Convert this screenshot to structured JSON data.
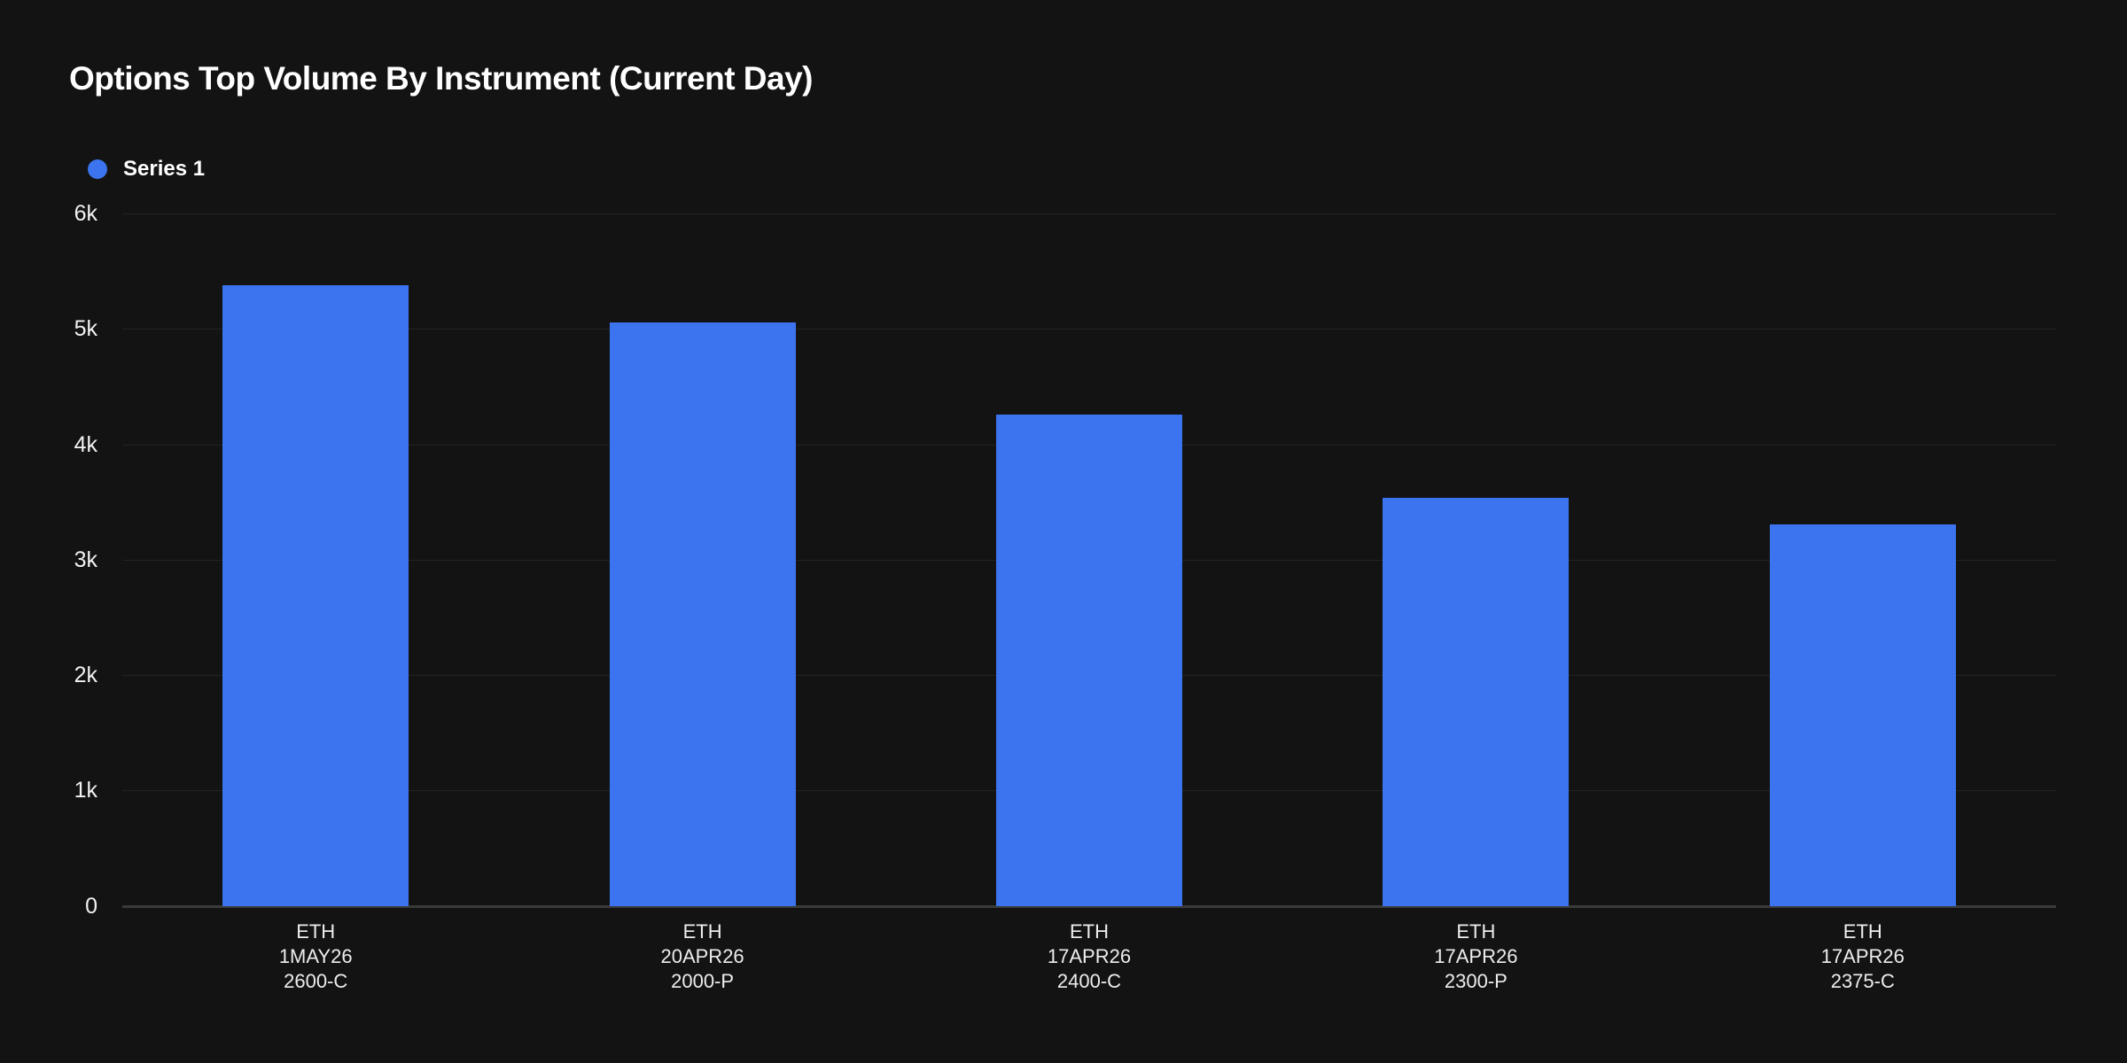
{
  "header": {
    "title": "Options Top Volume By Instrument (Current Day)"
  },
  "legend": {
    "label": "Series 1"
  },
  "chart_data": {
    "type": "bar",
    "title": "Options Top Volume By Instrument (Current Day)",
    "legend_entries": [
      "Series 1"
    ],
    "legend_position": "top-left",
    "grid": "horizontal",
    "categories": [
      [
        "ETH",
        "1MAY26",
        "2600-C"
      ],
      [
        "ETH",
        "20APR26",
        "2000-P"
      ],
      [
        "ETH",
        "17APR26",
        "2400-C"
      ],
      [
        "ETH",
        "17APR26",
        "2300-P"
      ],
      [
        "ETH",
        "17APR26",
        "2375-C"
      ]
    ],
    "series": [
      {
        "name": "Series 1",
        "values": [
          5380,
          5060,
          4260,
          3540,
          3310
        ]
      }
    ],
    "xlabel": "",
    "ylabel": "",
    "ylim": [
      0,
      6000
    ],
    "yticks": [
      {
        "value": 0,
        "label": "0"
      },
      {
        "value": 1000,
        "label": "1k"
      },
      {
        "value": 2000,
        "label": "2k"
      },
      {
        "value": 3000,
        "label": "3k"
      },
      {
        "value": 4000,
        "label": "4k"
      },
      {
        "value": 5000,
        "label": "5k"
      },
      {
        "value": 6000,
        "label": "6k"
      }
    ],
    "colors": {
      "bar": "#3b74ee",
      "background": "#131313",
      "gridline": "#232323",
      "axis_line": "#3a3a3a",
      "title_text": "#ffffff",
      "tick_text": "#f2f2f2",
      "label_text": "#ededed"
    }
  }
}
